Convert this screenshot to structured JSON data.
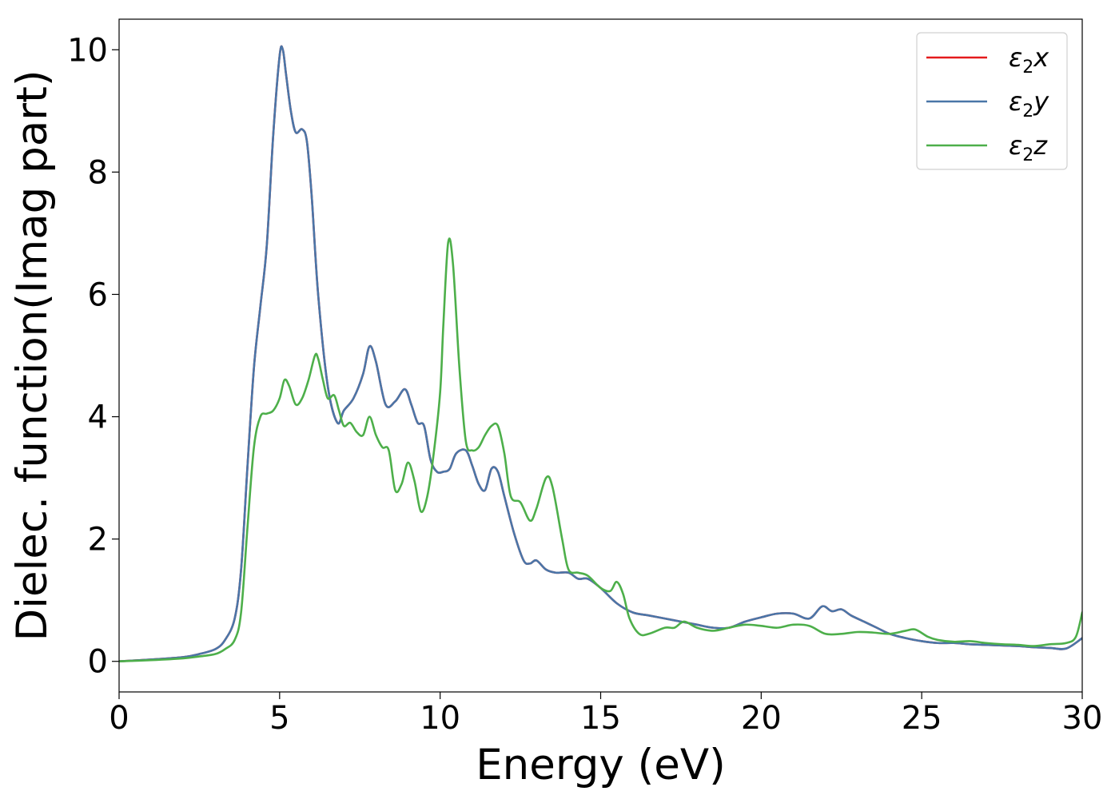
{
  "chart_data": {
    "type": "line",
    "title": "",
    "xlabel": "Energy (eV)",
    "ylabel": "Dielec. function(Imag part)",
    "xlim": [
      0,
      30
    ],
    "ylim": [
      -0.5,
      10.5
    ],
    "xticks": [
      0,
      5,
      10,
      15,
      20,
      25,
      30
    ],
    "xtick_labels": [
      "0",
      "5",
      "10",
      "15",
      "20",
      "25",
      "30"
    ],
    "yticks": [
      0,
      2,
      4,
      6,
      8,
      10
    ],
    "ytick_labels": [
      "0",
      "2",
      "4",
      "6",
      "8",
      "10"
    ],
    "grid": false,
    "legend_position": "top-right",
    "series": [
      {
        "name": "ε2x",
        "legend_main": "ε",
        "legend_sub": "2",
        "legend_var": "x",
        "color": "#e41a1c",
        "x": [
          0,
          1,
          2,
          2.5,
          3,
          3.3,
          3.6,
          3.8,
          4.0,
          4.2,
          4.4,
          4.6,
          4.8,
          5.0,
          5.1,
          5.2,
          5.35,
          5.5,
          5.7,
          5.85,
          6.0,
          6.2,
          6.5,
          6.8,
          7.0,
          7.3,
          7.6,
          7.8,
          8.0,
          8.3,
          8.6,
          8.9,
          9.1,
          9.3,
          9.5,
          9.7,
          9.9,
          10.1,
          10.3,
          10.5,
          10.8,
          11.0,
          11.2,
          11.4,
          11.6,
          11.8,
          12.0,
          12.3,
          12.6,
          12.8,
          13.0,
          13.3,
          13.6,
          14.0,
          14.3,
          14.6,
          15.0,
          15.5,
          16.0,
          16.5,
          17.0,
          17.5,
          18.0,
          18.5,
          19.0,
          19.5,
          20.0,
          20.5,
          21.0,
          21.5,
          21.9,
          22.2,
          22.5,
          22.8,
          23.2,
          23.6,
          24.0,
          24.5,
          25.0,
          25.5,
          26.0,
          26.5,
          27.0,
          27.5,
          28.0,
          28.5,
          29.0,
          29.5,
          30.0
        ],
        "y": [
          0.0,
          0.03,
          0.07,
          0.12,
          0.2,
          0.35,
          0.7,
          1.5,
          3.2,
          4.8,
          5.8,
          6.8,
          8.6,
          9.9,
          10.0,
          9.6,
          9.0,
          8.65,
          8.7,
          8.5,
          7.6,
          6.0,
          4.5,
          3.9,
          4.1,
          4.3,
          4.7,
          5.15,
          4.9,
          4.2,
          4.25,
          4.45,
          4.2,
          3.9,
          3.85,
          3.3,
          3.1,
          3.1,
          3.15,
          3.4,
          3.45,
          3.2,
          2.9,
          2.8,
          3.15,
          3.1,
          2.7,
          2.1,
          1.65,
          1.6,
          1.65,
          1.5,
          1.45,
          1.45,
          1.35,
          1.35,
          1.2,
          0.95,
          0.8,
          0.75,
          0.7,
          0.65,
          0.6,
          0.55,
          0.55,
          0.65,
          0.72,
          0.78,
          0.78,
          0.7,
          0.9,
          0.82,
          0.85,
          0.75,
          0.65,
          0.55,
          0.45,
          0.38,
          0.33,
          0.3,
          0.3,
          0.28,
          0.27,
          0.26,
          0.25,
          0.23,
          0.22,
          0.21,
          0.38
        ]
      },
      {
        "name": "ε2y",
        "legend_main": "ε",
        "legend_sub": "2",
        "legend_var": "y",
        "color": "#4a76a8",
        "x": [
          0,
          1,
          2,
          2.5,
          3,
          3.3,
          3.6,
          3.8,
          4.0,
          4.2,
          4.4,
          4.6,
          4.8,
          5.0,
          5.1,
          5.2,
          5.35,
          5.5,
          5.7,
          5.85,
          6.0,
          6.2,
          6.5,
          6.8,
          7.0,
          7.3,
          7.6,
          7.8,
          8.0,
          8.3,
          8.6,
          8.9,
          9.1,
          9.3,
          9.5,
          9.7,
          9.9,
          10.1,
          10.3,
          10.5,
          10.8,
          11.0,
          11.2,
          11.4,
          11.6,
          11.8,
          12.0,
          12.3,
          12.6,
          12.8,
          13.0,
          13.3,
          13.6,
          14.0,
          14.3,
          14.6,
          15.0,
          15.5,
          16.0,
          16.5,
          17.0,
          17.5,
          18.0,
          18.5,
          19.0,
          19.5,
          20.0,
          20.5,
          21.0,
          21.5,
          21.9,
          22.2,
          22.5,
          22.8,
          23.2,
          23.6,
          24.0,
          24.5,
          25.0,
          25.5,
          26.0,
          26.5,
          27.0,
          27.5,
          28.0,
          28.5,
          29.0,
          29.5,
          30.0
        ],
        "y": [
          0.0,
          0.03,
          0.07,
          0.12,
          0.2,
          0.35,
          0.7,
          1.5,
          3.2,
          4.8,
          5.8,
          6.8,
          8.6,
          9.9,
          10.0,
          9.6,
          9.0,
          8.65,
          8.7,
          8.5,
          7.6,
          6.0,
          4.5,
          3.9,
          4.1,
          4.3,
          4.7,
          5.15,
          4.9,
          4.2,
          4.25,
          4.45,
          4.2,
          3.9,
          3.85,
          3.3,
          3.1,
          3.1,
          3.15,
          3.4,
          3.45,
          3.2,
          2.9,
          2.8,
          3.15,
          3.1,
          2.7,
          2.1,
          1.65,
          1.6,
          1.65,
          1.5,
          1.45,
          1.45,
          1.35,
          1.35,
          1.2,
          0.95,
          0.8,
          0.75,
          0.7,
          0.65,
          0.6,
          0.55,
          0.55,
          0.65,
          0.72,
          0.78,
          0.78,
          0.7,
          0.9,
          0.82,
          0.85,
          0.75,
          0.65,
          0.55,
          0.45,
          0.38,
          0.33,
          0.3,
          0.3,
          0.28,
          0.27,
          0.26,
          0.25,
          0.23,
          0.22,
          0.21,
          0.38
        ]
      },
      {
        "name": "ε2z",
        "legend_main": "ε",
        "legend_sub": "2",
        "legend_var": "z",
        "color": "#4daf4a",
        "x": [
          0,
          1,
          2,
          2.5,
          3,
          3.3,
          3.6,
          3.8,
          4.0,
          4.2,
          4.4,
          4.6,
          4.8,
          5.0,
          5.15,
          5.3,
          5.5,
          5.7,
          5.9,
          6.1,
          6.2,
          6.35,
          6.5,
          6.7,
          6.85,
          7.0,
          7.2,
          7.4,
          7.6,
          7.8,
          8.0,
          8.2,
          8.4,
          8.6,
          8.8,
          9.0,
          9.2,
          9.4,
          9.6,
          9.8,
          10.0,
          10.1,
          10.25,
          10.4,
          10.6,
          10.8,
          11.0,
          11.2,
          11.4,
          11.6,
          11.8,
          12.0,
          12.2,
          12.5,
          12.8,
          13.0,
          13.3,
          13.5,
          13.8,
          14.0,
          14.3,
          14.6,
          15.0,
          15.3,
          15.5,
          15.7,
          15.9,
          16.2,
          16.5,
          17.0,
          17.3,
          17.6,
          18.0,
          18.5,
          19.0,
          19.5,
          20.0,
          20.5,
          21.0,
          21.5,
          22.0,
          22.5,
          23.0,
          23.5,
          24.0,
          24.5,
          24.8,
          25.2,
          25.5,
          26.0,
          26.5,
          27.0,
          27.5,
          28.0,
          28.5,
          29.0,
          29.5,
          29.8,
          30.0
        ],
        "y": [
          0.0,
          0.02,
          0.05,
          0.08,
          0.12,
          0.2,
          0.35,
          0.8,
          2.2,
          3.5,
          4.0,
          4.05,
          4.1,
          4.3,
          4.6,
          4.5,
          4.2,
          4.3,
          4.6,
          5.0,
          4.95,
          4.6,
          4.3,
          4.35,
          4.1,
          3.85,
          3.9,
          3.75,
          3.7,
          4.0,
          3.7,
          3.5,
          3.45,
          2.8,
          2.9,
          3.25,
          2.95,
          2.45,
          2.7,
          3.4,
          4.4,
          5.5,
          6.85,
          6.5,
          4.8,
          3.6,
          3.45,
          3.5,
          3.7,
          3.85,
          3.85,
          3.4,
          2.7,
          2.6,
          2.3,
          2.5,
          3.0,
          2.85,
          2.0,
          1.5,
          1.45,
          1.4,
          1.2,
          1.15,
          1.3,
          1.1,
          0.7,
          0.45,
          0.45,
          0.55,
          0.55,
          0.65,
          0.55,
          0.5,
          0.55,
          0.6,
          0.58,
          0.55,
          0.6,
          0.58,
          0.45,
          0.45,
          0.48,
          0.47,
          0.45,
          0.5,
          0.52,
          0.4,
          0.35,
          0.32,
          0.33,
          0.3,
          0.28,
          0.27,
          0.25,
          0.28,
          0.3,
          0.4,
          0.8
        ]
      }
    ]
  }
}
